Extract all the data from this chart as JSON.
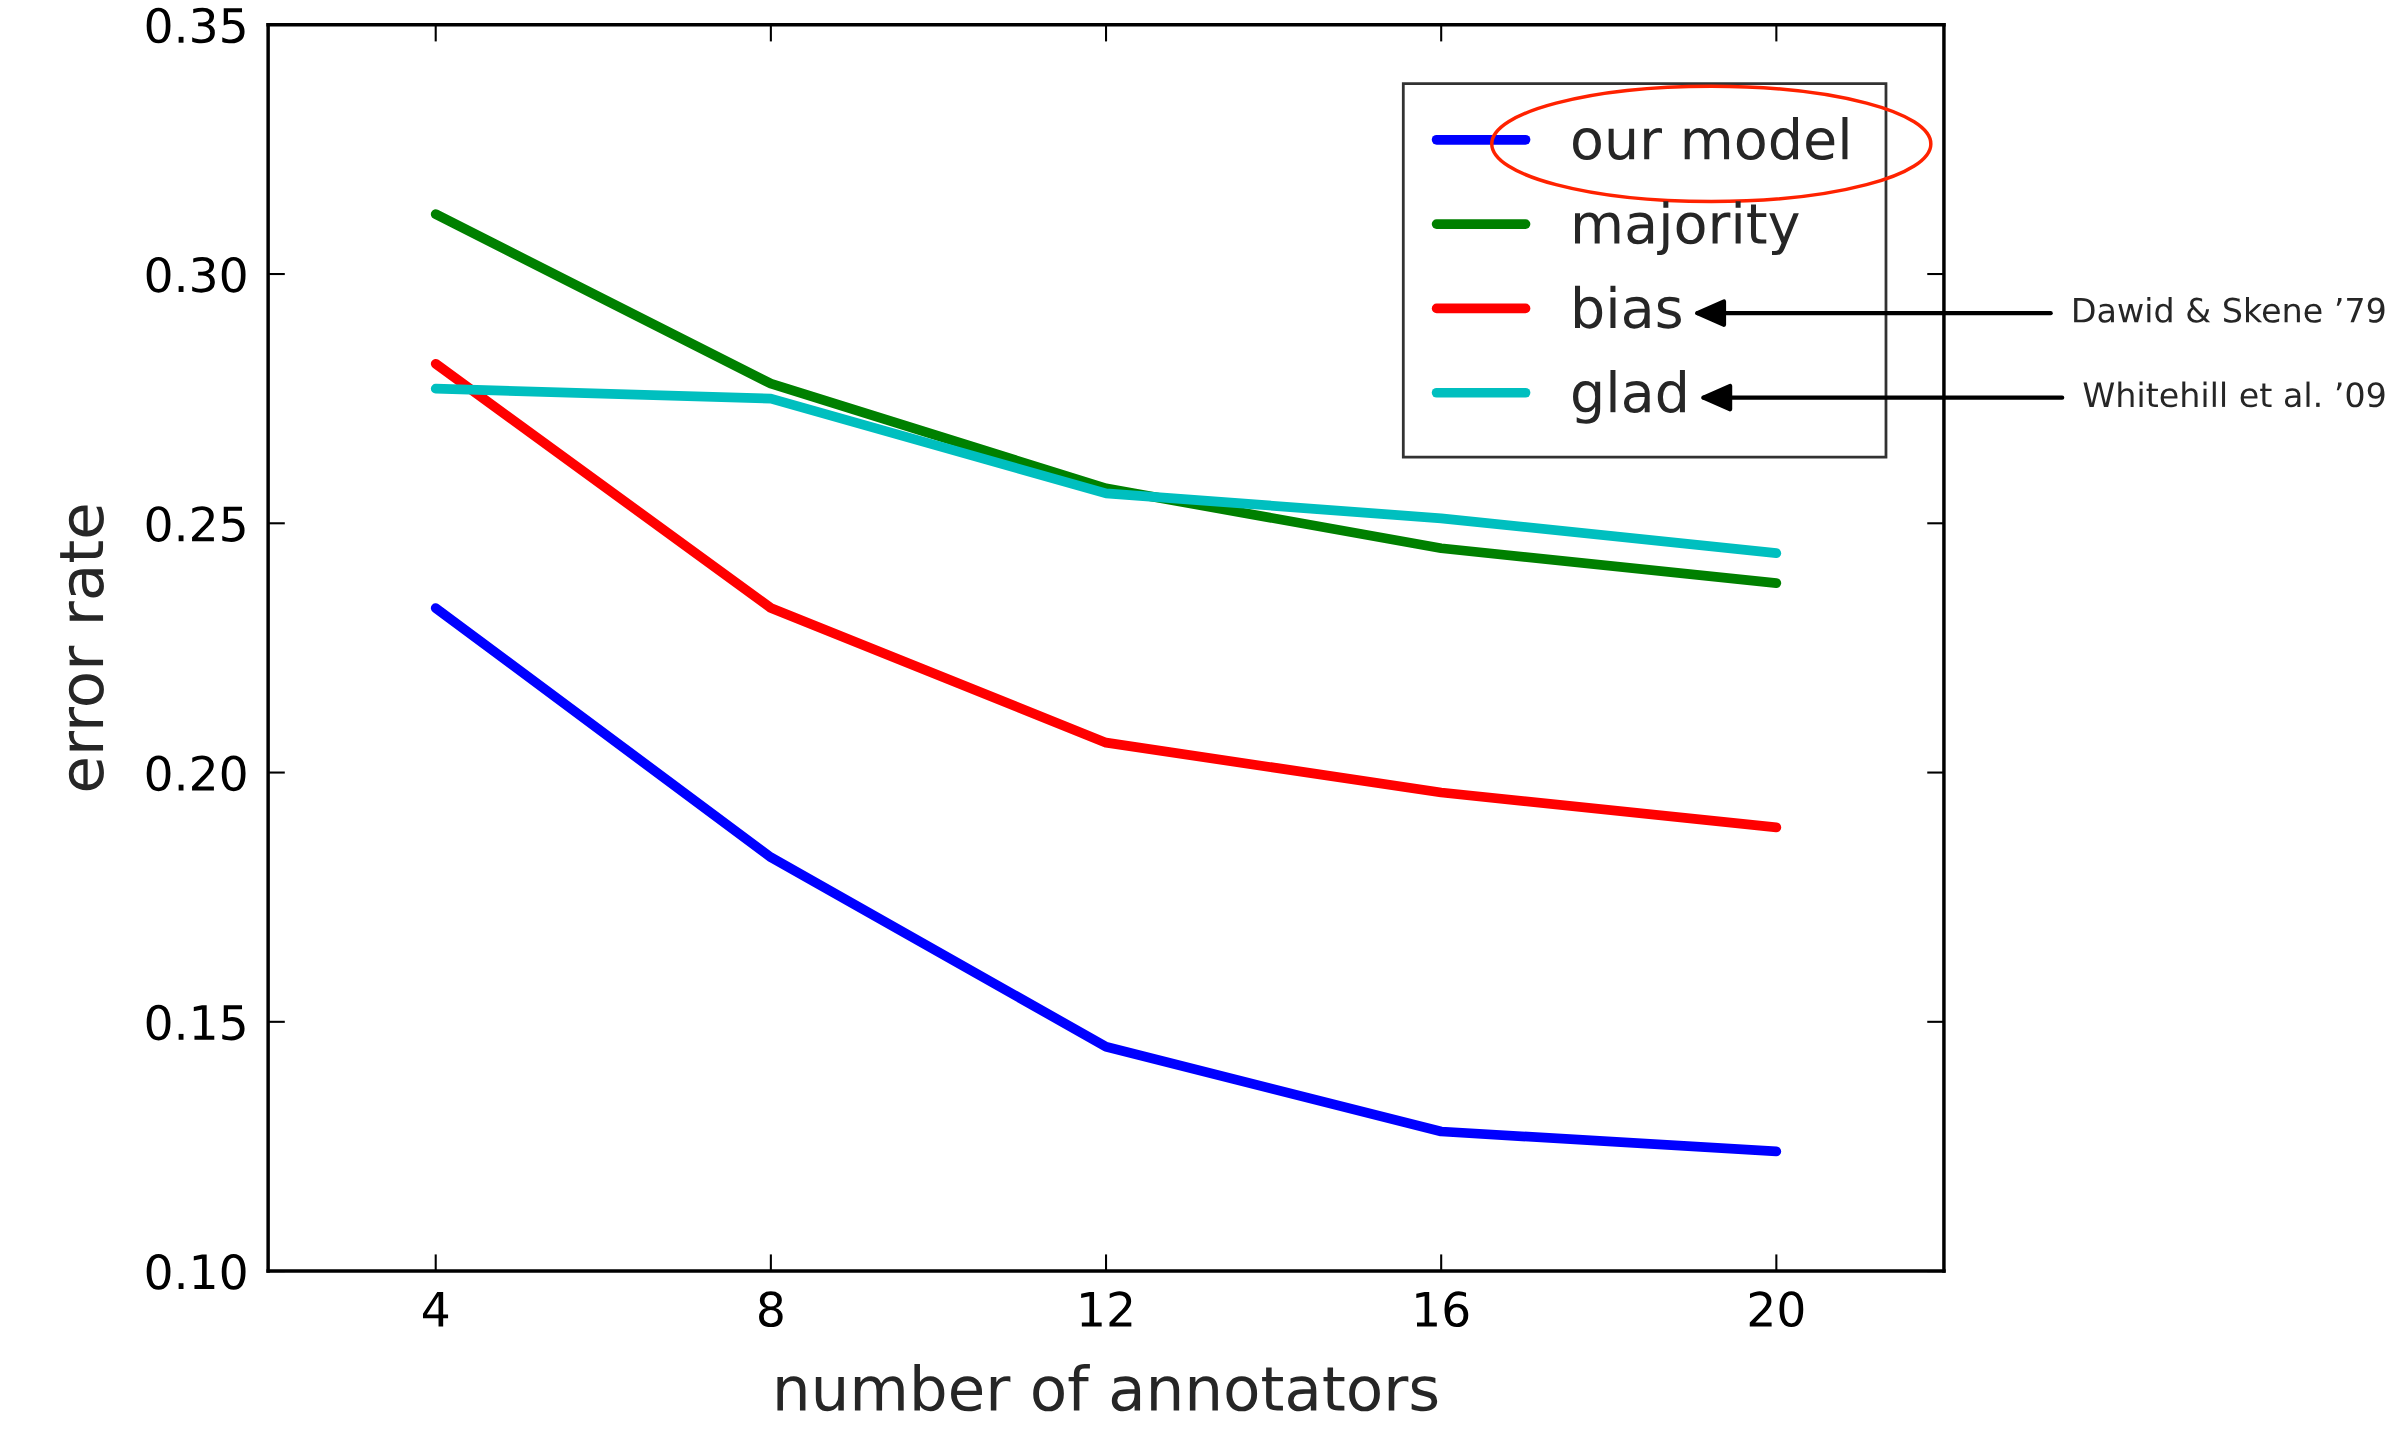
{
  "chart_data": {
    "type": "line",
    "xlabel": "number of annotators",
    "ylabel": "error rate",
    "x": [
      4,
      8,
      12,
      16,
      20
    ],
    "series": [
      {
        "name": "our model",
        "color": "#0000ff",
        "values": [
          0.233,
          0.183,
          0.145,
          0.128,
          0.124
        ]
      },
      {
        "name": "majority",
        "color": "#008000",
        "values": [
          0.312,
          0.278,
          0.257,
          0.245,
          0.238
        ]
      },
      {
        "name": "bias",
        "color": "#ff0000",
        "values": [
          0.282,
          0.233,
          0.206,
          0.196,
          0.189
        ]
      },
      {
        "name": "glad",
        "color": "#00bfbf",
        "values": [
          0.277,
          0.275,
          0.256,
          0.251,
          0.244
        ]
      }
    ],
    "xlim": [
      2,
      22
    ],
    "xticks": [
      4,
      8,
      12,
      16,
      20
    ],
    "ylim": [
      0.1,
      0.35
    ],
    "yticks": [
      {
        "value": 0.1,
        "label": "0.10"
      },
      {
        "value": 0.15,
        "label": "0.15"
      },
      {
        "value": 0.2,
        "label": "0.20"
      },
      {
        "value": 0.25,
        "label": "0.25"
      },
      {
        "value": 0.3,
        "label": "0.30"
      },
      {
        "value": 0.35,
        "label": "0.35"
      }
    ],
    "grid": false,
    "legend": "top right",
    "line_style": "solid",
    "marker": "none",
    "annotations": [
      "Dawid & Skene ’79",
      "Whitehill et al. ’09"
    ]
  }
}
